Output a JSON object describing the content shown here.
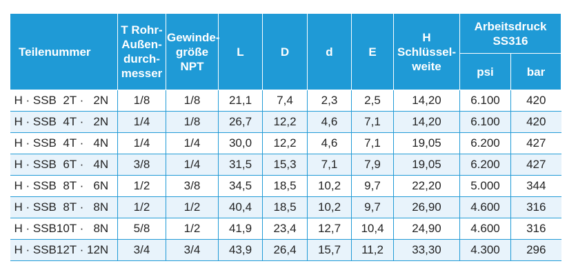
{
  "table": {
    "headers": {
      "part_number": "Teilenummer",
      "t_tube_od": "T Rohr-\nAußen-\ndurch-\nmesser",
      "thread_size": "Gewinde-\ngröße\nNPT",
      "l": "L",
      "d_upper": "D",
      "d_lower": "d",
      "e": "E",
      "h_wrench": "H\nSchlüssel-\nweite",
      "working_pressure": "Arbeitsdruck\nSS316",
      "psi": "psi",
      "bar": "bar"
    },
    "rows": [
      [
        "H · SSB  2T ·   2N",
        "1/8",
        "1/8",
        "21,1",
        "7,4",
        "2,3",
        "2,5",
        "14,20",
        "6.100",
        "420"
      ],
      [
        "H · SSB  4T ·   2N",
        "1/4",
        "1/8",
        "26,7",
        "12,2",
        "4,6",
        "7,1",
        "14,20",
        "6.100",
        "420"
      ],
      [
        "H · SSB  4T ·   4N",
        "1/4",
        "1/4",
        "30,0",
        "12,2",
        "4,6",
        "7,1",
        "19,05",
        "6.200",
        "427"
      ],
      [
        "H · SSB  6T ·   4N",
        "3/8",
        "1/4",
        "31,5",
        "15,3",
        "7,1",
        "7,9",
        "19,05",
        "6.200",
        "427"
      ],
      [
        "H · SSB  8T ·   6N",
        "1/2",
        "3/8",
        "34,5",
        "18,5",
        "10,2",
        "9,7",
        "22,20",
        "5.000",
        "344"
      ],
      [
        "H · SSB  8T ·   8N",
        "1/2",
        "1/2",
        "40,4",
        "18,5",
        "10,2",
        "9,7",
        "26,90",
        "4.600",
        "316"
      ],
      [
        "H · SSB10T ·   8N",
        "5/8",
        "1/2",
        "41,9",
        "23,4",
        "12,7",
        "10,4",
        "24,90",
        "4.600",
        "316"
      ],
      [
        "H · SSB12T · 12N",
        "3/4",
        "3/4",
        "43,9",
        "26,4",
        "15,7",
        "11,2",
        "33,30",
        "4.300",
        "296"
      ]
    ]
  },
  "colors": {
    "header_bg": "#1f9ad6",
    "header_text": "#ffffff",
    "row_alt_bg": "#e8f3fb",
    "grid_line": "#1f9ad6"
  }
}
